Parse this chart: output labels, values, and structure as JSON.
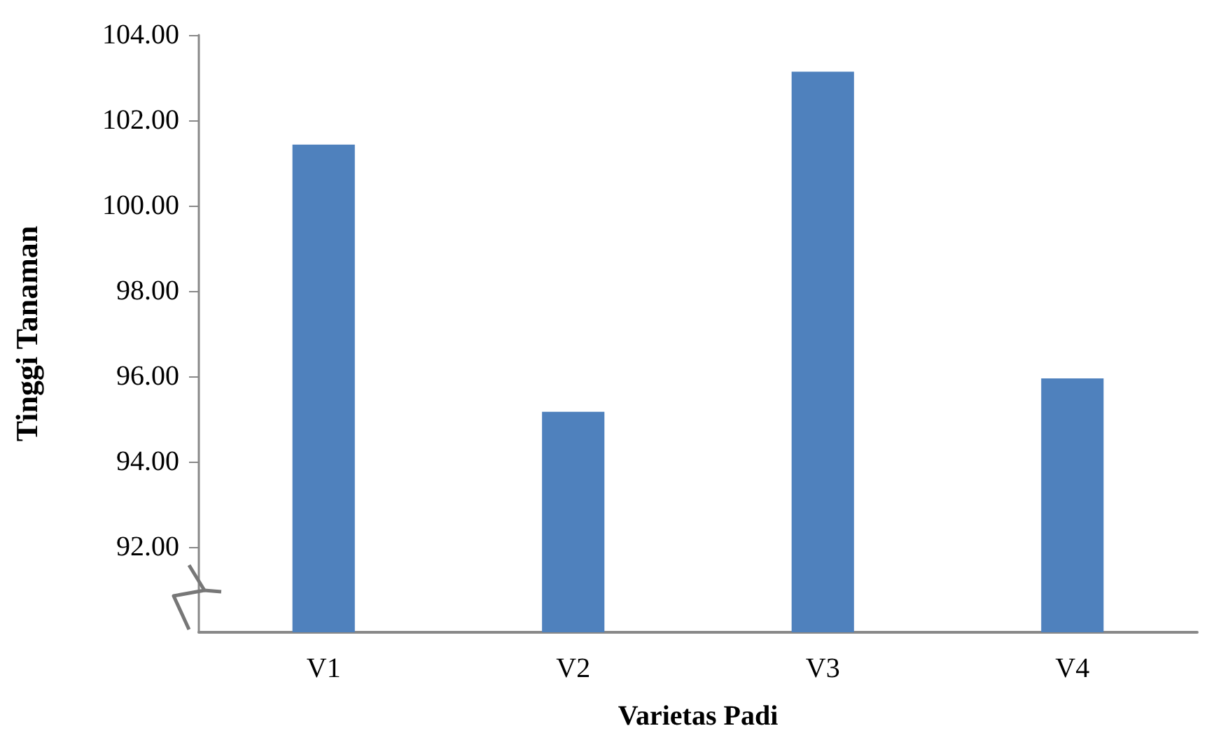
{
  "chart_data": {
    "type": "bar",
    "xlabel": "Varietas Padi",
    "ylabel": "Tinggi Tanaman",
    "categories": [
      "V1",
      "V2",
      "V3",
      "V4"
    ],
    "values": [
      101.43,
      95.17,
      103.14,
      95.95
    ],
    "color": "#4f81bd",
    "ylim": [
      90,
      104
    ],
    "yticks": [
      {
        "value": 92,
        "label": "92.00"
      },
      {
        "value": 94,
        "label": "94.00"
      },
      {
        "value": 96,
        "label": "96.00"
      },
      {
        "value": 98,
        "label": "98.00"
      },
      {
        "value": 100,
        "label": "100.00"
      },
      {
        "value": 102,
        "label": "102.00"
      },
      {
        "value": 104,
        "label": "104.00"
      }
    ],
    "grid": false
  }
}
